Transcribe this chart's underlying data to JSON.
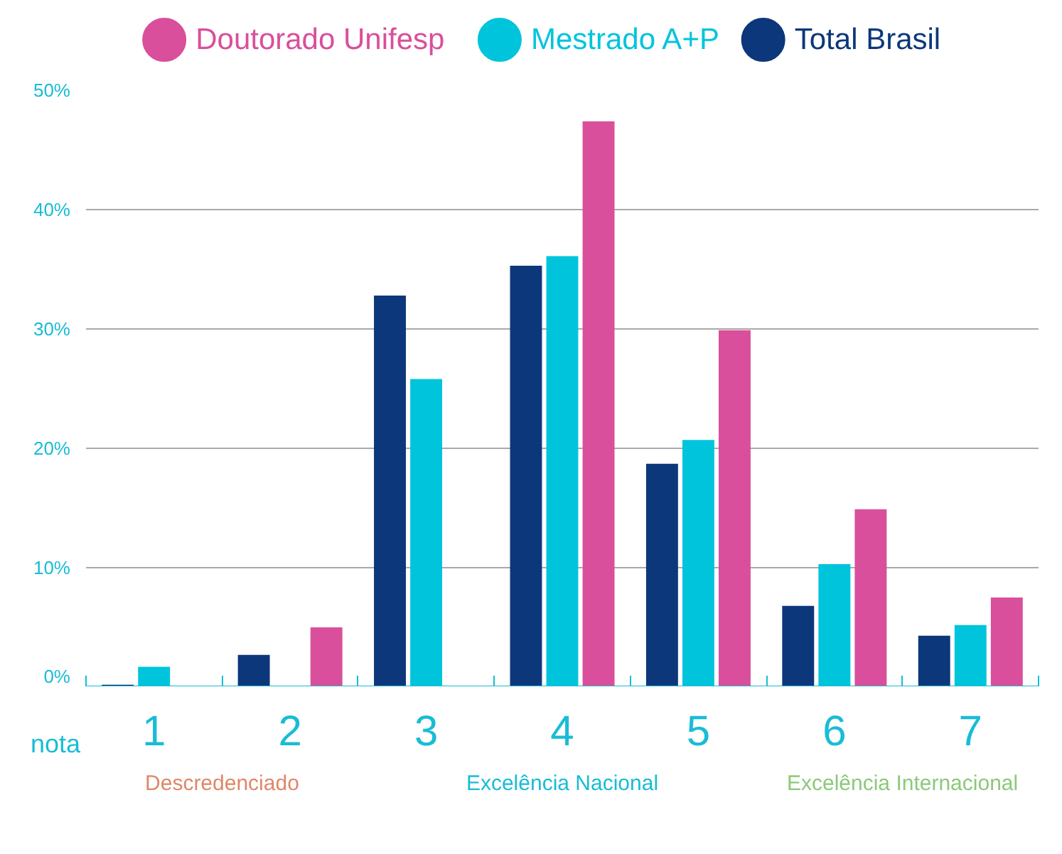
{
  "chart_data": {
    "type": "bar",
    "xlabel": "nota",
    "categories": [
      "1",
      "2",
      "3",
      "4",
      "5",
      "6",
      "7"
    ],
    "series": [
      {
        "name": "Total Brasil",
        "color": "#0c377a",
        "values": [
          0.2,
          2.7,
          32.8,
          35.3,
          18.7,
          6.8,
          4.3
        ]
      },
      {
        "name": "Mestrado A+P",
        "color": "#00c4dc",
        "values": [
          1.7,
          null,
          25.8,
          36.1,
          20.7,
          10.3,
          5.2
        ]
      },
      {
        "name": "Doutorado Unifesp",
        "color": "#d94f9b",
        "values": [
          null,
          5.0,
          null,
          47.4,
          29.9,
          14.9,
          7.5
        ]
      }
    ],
    "ylim": [
      0,
      50
    ],
    "yticks": [
      {
        "value": 0,
        "label": "0%"
      },
      {
        "value": 10,
        "label": "10%"
      },
      {
        "value": 20,
        "label": "20%"
      },
      {
        "value": 30,
        "label": "30%"
      },
      {
        "value": 40,
        "label": "40%"
      },
      {
        "value": 50,
        "label": "50%"
      }
    ],
    "grid": "y",
    "legend": "top",
    "annotations": [
      "Descredenciado",
      "Excelência Nacional",
      "Excelência Internacional"
    ]
  }
}
